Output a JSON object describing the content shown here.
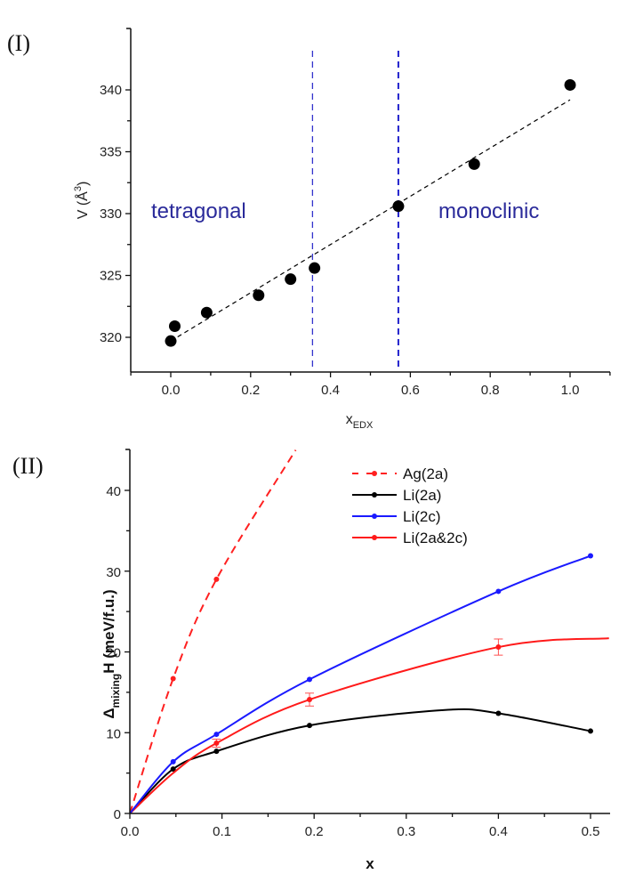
{
  "chart_data": [
    {
      "panel_label": "(I)",
      "type": "scatter",
      "title": "",
      "xlabel": "x",
      "xlabel_sub": "EDX",
      "ylabel": "V (Å",
      "ylabel_sup": "3",
      "ylabel_close": ")",
      "xlim": [
        -0.1,
        1.1
      ],
      "ylim": [
        317.5,
        342.5
      ],
      "xticks": [
        0.0,
        0.2,
        0.4,
        0.6,
        0.8,
        1.0
      ],
      "xtick_labels": [
        "0.0",
        "0.2",
        "0.4",
        "0.6",
        "0.8",
        "1.0"
      ],
      "yticks": [
        320,
        325,
        330,
        335,
        340
      ],
      "ytick_labels": [
        "320",
        "325",
        "330",
        "335",
        "340"
      ],
      "grid": false,
      "points": {
        "x": [
          0.0,
          0.01,
          0.09,
          0.22,
          0.3,
          0.36,
          0.57,
          0.76,
          1.0
        ],
        "y": [
          319.7,
          320.9,
          322.0,
          323.4,
          324.7,
          325.6,
          330.6,
          334.0,
          340.4
        ],
        "color": "#000000"
      },
      "fit_line": {
        "x": [
          0.0,
          1.0
        ],
        "y": [
          319.7,
          339.2
        ],
        "style": "dashed",
        "color": "#000000"
      },
      "vertical_lines": [
        {
          "x": 0.355,
          "style": "dashed",
          "color": "#3333cc"
        },
        {
          "x": 0.57,
          "style": "dashed",
          "color": "#2222cc"
        }
      ],
      "annotations": [
        {
          "text": "tetragonal",
          "x": 0.08,
          "y": 330.2,
          "color": "#2a2a9a"
        },
        {
          "text": "monoclinic",
          "x": 0.82,
          "y": 330.2,
          "color": "#2a2a9a"
        }
      ]
    },
    {
      "panel_label": "(II)",
      "type": "line",
      "title": "",
      "xlabel": "x",
      "ylabel_prefix": "Δ",
      "ylabel_sub": "mixing",
      "ylabel_suffix": "H (meV/f.u.)",
      "xlim": [
        0.0,
        0.52
      ],
      "ylim": [
        0,
        45
      ],
      "xticks": [
        0.0,
        0.1,
        0.2,
        0.3,
        0.4,
        0.5
      ],
      "xtick_labels": [
        "0.0",
        "0.1",
        "0.2",
        "0.3",
        "0.4",
        "0.5"
      ],
      "yticks": [
        0,
        10,
        20,
        30,
        40
      ],
      "ytick_labels": [
        "0",
        "10",
        "20",
        "30",
        "40"
      ],
      "grid": false,
      "legend_position": "top-right",
      "series": [
        {
          "name": "Ag(2a)",
          "color": "#ff2020",
          "style": "dashed",
          "x": [
            0.0,
            0.047,
            0.094,
            0.18
          ],
          "y": [
            0.0,
            16.7,
            29.0,
            45.0
          ],
          "markers": [
            1,
            2
          ]
        },
        {
          "name": "Li(2a)",
          "color": "#000000",
          "style": "solid",
          "x": [
            0.0,
            0.047,
            0.094,
            0.195,
            0.34,
            0.4,
            0.5
          ],
          "y": [
            0.0,
            5.5,
            7.7,
            10.9,
            12.8,
            12.4,
            10.2
          ],
          "markers": [
            1,
            2,
            3,
            5,
            6
          ]
        },
        {
          "name": "Li(2c)",
          "color": "#1a1aff",
          "style": "solid",
          "x": [
            0.0,
            0.047,
            0.094,
            0.195,
            0.4,
            0.5
          ],
          "y": [
            0.0,
            6.4,
            9.8,
            16.6,
            27.5,
            31.9
          ],
          "markers": [
            1,
            2,
            3,
            4,
            5
          ]
        },
        {
          "name": "Li(2a&2c)",
          "color": "#ff1a1a",
          "style": "solid",
          "x": [
            0.0,
            0.047,
            0.094,
            0.195,
            0.4,
            0.52
          ],
          "y": [
            0.0,
            5.0,
            8.7,
            14.1,
            20.6,
            21.7
          ],
          "markers": [
            2,
            3,
            4
          ],
          "error_bars": {
            "x": [
              0.094,
              0.195,
              0.4
            ],
            "err": [
              0.5,
              0.8,
              1.0
            ]
          }
        }
      ]
    }
  ]
}
